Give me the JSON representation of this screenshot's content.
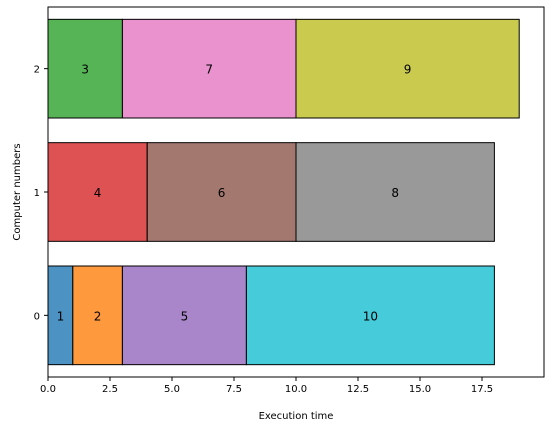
{
  "chart_data": {
    "type": "bar",
    "orientation": "horizontal-stacked",
    "xlabel": "Execution time",
    "ylabel": "Computer numbers",
    "xlim": [
      0,
      20
    ],
    "ylim": [
      -0.5,
      2.5
    ],
    "xticks": [
      "0.0",
      "2.5",
      "5.0",
      "7.5",
      "10.0",
      "12.5",
      "15.0",
      "17.5"
    ],
    "xtick_values": [
      0,
      2.5,
      5,
      7.5,
      10,
      12.5,
      15,
      17.5
    ],
    "yticks": [
      "0",
      "1",
      "2"
    ],
    "grid": false,
    "computers": [
      {
        "name": "0",
        "tasks": [
          {
            "label": "1",
            "start": 0,
            "duration": 1,
            "color": "#1f77b4"
          },
          {
            "label": "2",
            "start": 1,
            "duration": 2,
            "color": "#ff7f0e"
          },
          {
            "label": "5",
            "start": 3,
            "duration": 5,
            "color": "#9467bd"
          },
          {
            "label": "10",
            "start": 8,
            "duration": 10,
            "color": "#17becf"
          }
        ]
      },
      {
        "name": "1",
        "tasks": [
          {
            "label": "4",
            "start": 0,
            "duration": 4,
            "color": "#d62728"
          },
          {
            "label": "6",
            "start": 4,
            "duration": 6,
            "color": "#8c564b"
          },
          {
            "label": "8",
            "start": 10,
            "duration": 8,
            "color": "#7f7f7f"
          }
        ]
      },
      {
        "name": "2",
        "tasks": [
          {
            "label": "3",
            "start": 0,
            "duration": 3,
            "color": "#2ca02c"
          },
          {
            "label": "7",
            "start": 3,
            "duration": 7,
            "color": "#e377c2"
          },
          {
            "label": "9",
            "start": 10,
            "duration": 9,
            "color": "#bcbd22"
          }
        ]
      }
    ]
  }
}
